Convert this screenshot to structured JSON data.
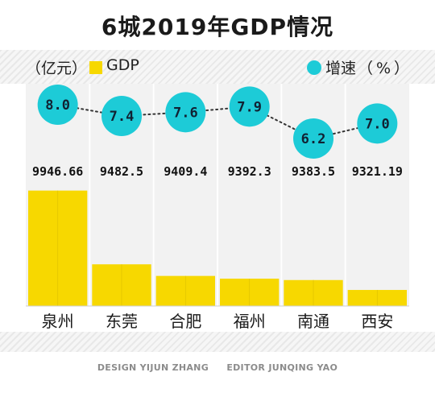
{
  "title": "6城2019年GDP情况",
  "legend": {
    "unit": "（亿元）",
    "gdp": "GDP",
    "growth": "增速",
    "growth_unit": "（%）"
  },
  "colors": {
    "bar": "#f7d800",
    "bubble": "#1dcbd7",
    "panel": "#f2f2f2",
    "divider": "#ffffff"
  },
  "credits": {
    "design_label": "DESIGN",
    "design_name": "YIJUN ZHANG",
    "editor_label": "EDITOR",
    "editor_name": "JUNQING YAO"
  },
  "chart_data": {
    "type": "bar",
    "title": "6城2019年GDP情况",
    "categories": [
      "泉州",
      "东莞",
      "合肥",
      "福州",
      "南通",
      "西安"
    ],
    "series": [
      {
        "name": "GDP",
        "unit": "亿元",
        "type": "bar",
        "values": [
          9946.66,
          9482.5,
          9409.4,
          9392.3,
          9383.5,
          9321.19
        ],
        "labels": [
          "9946.66",
          "9482.5",
          "9409.4",
          "9392.3",
          "9383.5",
          "9321.19"
        ]
      },
      {
        "name": "增速",
        "unit": "%",
        "type": "line",
        "values": [
          8.0,
          7.4,
          7.6,
          7.9,
          6.2,
          7.0
        ],
        "labels": [
          "8.0",
          "7.4",
          "7.6",
          "7.9",
          "6.2",
          "7.0"
        ]
      }
    ],
    "legend_position": "top",
    "grid": false
  }
}
